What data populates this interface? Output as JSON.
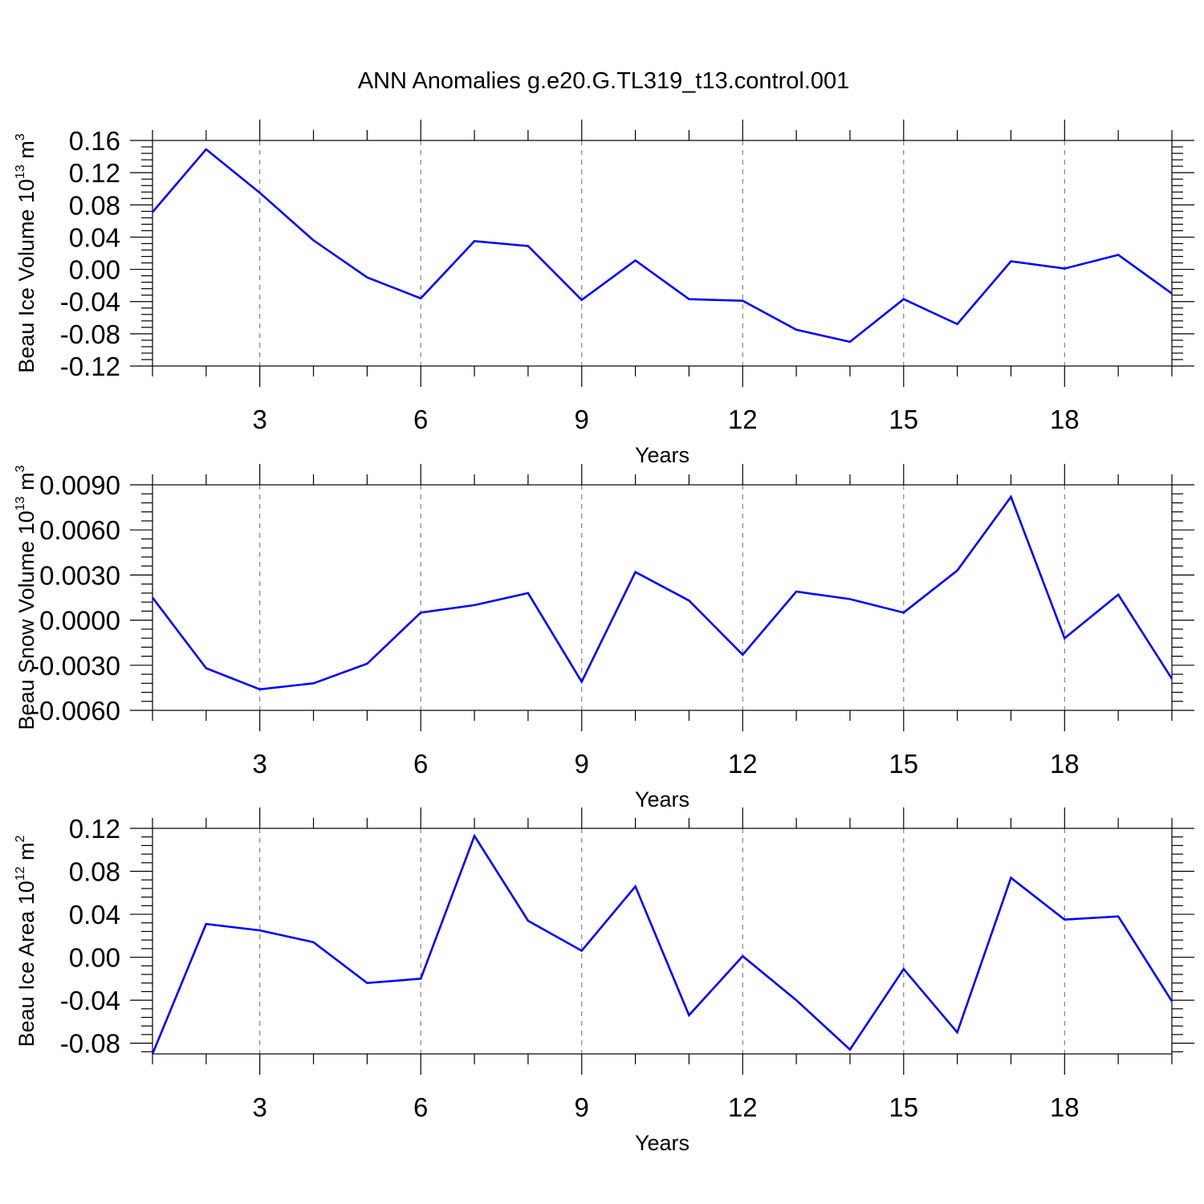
{
  "figure": {
    "title": "ANN Anomalies g.e20.G.TL319_t13.control.001"
  },
  "colors": {
    "series": "#0000ff",
    "axis": "#000000",
    "grid": "#777777"
  },
  "chart_data": [
    {
      "type": "line",
      "ylabel_main": "Beau Ice Volume 10",
      "ylabel_exp": "13",
      "ylabel_unit": " m",
      "ylabel_unit_exp": "3",
      "xlabel": "Years",
      "xlim": [
        1,
        20
      ],
      "ylim": [
        -0.12,
        0.16
      ],
      "xticks": [
        3,
        6,
        9,
        12,
        15,
        18
      ],
      "xtick_labels": [
        "3",
        "6",
        "9",
        "12",
        "15",
        "18"
      ],
      "yticks": [
        -0.12,
        -0.08,
        -0.04,
        0.0,
        0.04,
        0.08,
        0.12,
        0.16
      ],
      "ytick_labels": [
        "-0.12",
        "-0.08",
        "-0.04",
        "0.00",
        "0.04",
        "0.08",
        "0.12",
        "0.16"
      ],
      "x": [
        1,
        2,
        3,
        4,
        5,
        6,
        7,
        8,
        9,
        10,
        11,
        12,
        13,
        14,
        15,
        16,
        17,
        18,
        19,
        20
      ],
      "values": [
        0.071,
        0.149,
        0.095,
        0.036,
        -0.01,
        -0.036,
        0.035,
        0.029,
        -0.038,
        0.011,
        -0.037,
        -0.039,
        -0.075,
        -0.09,
        -0.037,
        -0.068,
        0.01,
        0.001,
        0.018,
        -0.03
      ]
    },
    {
      "type": "line",
      "ylabel_main": "Beau Snow Volume 10",
      "ylabel_exp": "13",
      "ylabel_unit": " m",
      "ylabel_unit_exp": "3",
      "xlabel": "Years",
      "xlim": [
        1,
        20
      ],
      "ylim": [
        -0.006,
        0.009
      ],
      "xticks": [
        3,
        6,
        9,
        12,
        15,
        18
      ],
      "xtick_labels": [
        "3",
        "6",
        "9",
        "12",
        "15",
        "18"
      ],
      "yticks": [
        -0.006,
        -0.003,
        0.0,
        0.003,
        0.006,
        0.009
      ],
      "ytick_labels": [
        "-0.0060",
        "-0.0030",
        "0.0000",
        "0.0030",
        "0.0060",
        "0.0090"
      ],
      "x": [
        1,
        2,
        3,
        4,
        5,
        6,
        7,
        8,
        9,
        10,
        11,
        12,
        13,
        14,
        15,
        16,
        17,
        18,
        19,
        20
      ],
      "values": [
        0.0015,
        -0.0032,
        -0.0046,
        -0.0042,
        -0.0029,
        0.0005,
        0.001,
        0.0018,
        -0.0041,
        0.0032,
        0.0013,
        -0.0023,
        0.0019,
        0.0014,
        0.0005,
        0.0033,
        0.0082,
        -0.0012,
        0.0017,
        -0.0039
      ]
    },
    {
      "type": "line",
      "ylabel_main": "Beau Ice Area 10",
      "ylabel_exp": "12",
      "ylabel_unit": " m",
      "ylabel_unit_exp": "2",
      "xlabel": "Years",
      "xlim": [
        1,
        20
      ],
      "ylim": [
        -0.09,
        0.12
      ],
      "xticks": [
        3,
        6,
        9,
        12,
        15,
        18
      ],
      "xtick_labels": [
        "3",
        "6",
        "9",
        "12",
        "15",
        "18"
      ],
      "yticks": [
        -0.08,
        -0.04,
        0.0,
        0.04,
        0.08,
        0.12
      ],
      "ytick_labels": [
        "-0.08",
        "-0.04",
        "0.00",
        "0.04",
        "0.08",
        "0.12"
      ],
      "x": [
        1,
        2,
        3,
        4,
        5,
        6,
        7,
        8,
        9,
        10,
        11,
        12,
        13,
        14,
        15,
        16,
        17,
        18,
        19,
        20
      ],
      "values": [
        -0.09,
        0.031,
        0.025,
        0.014,
        -0.024,
        -0.02,
        0.113,
        0.034,
        0.006,
        0.066,
        -0.054,
        0.001,
        -0.04,
        -0.086,
        -0.011,
        -0.07,
        0.074,
        0.035,
        0.038,
        -0.041
      ]
    }
  ]
}
